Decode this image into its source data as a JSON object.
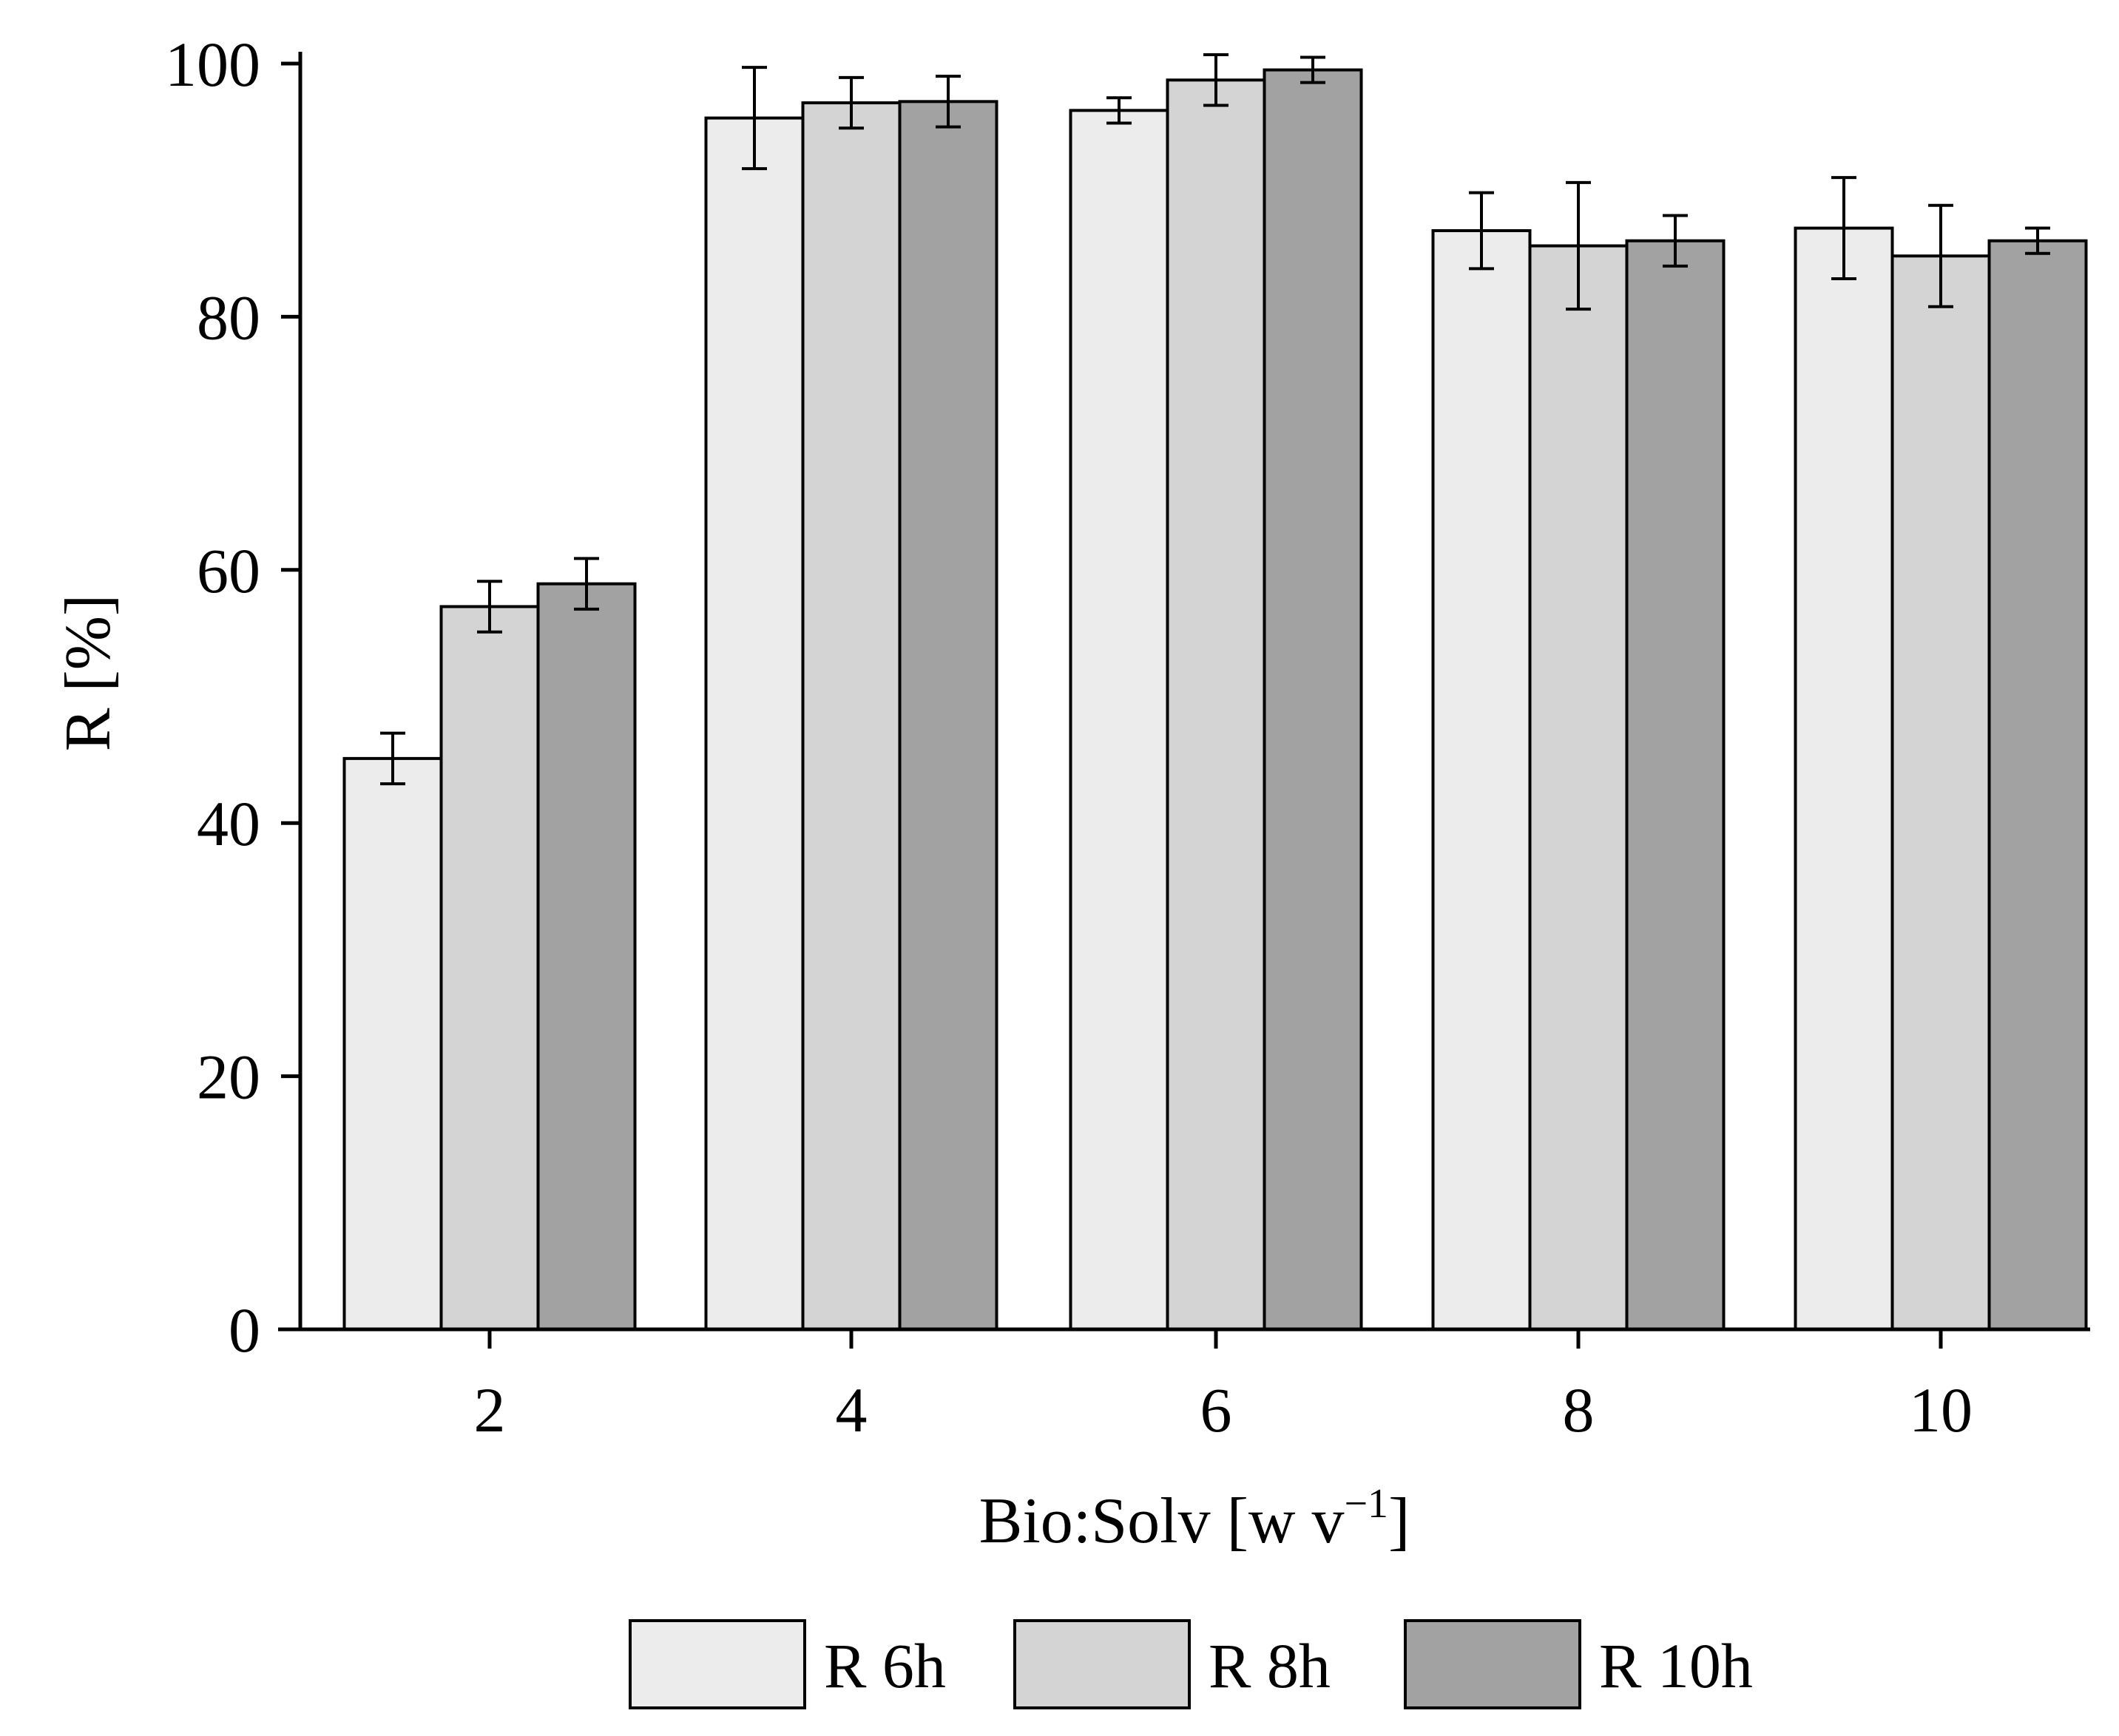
{
  "chart_data": {
    "type": "bar",
    "title": "",
    "xlabel_main": "Bio:Solv [w v",
    "xlabel_sup": "−1",
    "xlabel_close": "]",
    "ylabel": "R [%]",
    "categories": [
      "2",
      "4",
      "6",
      "8",
      "10"
    ],
    "ylim": [
      0,
      100
    ],
    "yticks": [
      0,
      20,
      40,
      60,
      80,
      100
    ],
    "ytick_labels": [
      "0",
      "20",
      "40",
      "60",
      "80",
      "100"
    ],
    "grid": false,
    "legend_position": "bottom-center",
    "series": [
      {
        "name": "R 6h",
        "color": "#ececec",
        "values": [
          45.1,
          95.7,
          96.3,
          86.8,
          87.0
        ],
        "errors": [
          2.0,
          4.0,
          1.0,
          3.0,
          4.0
        ]
      },
      {
        "name": "R 8h",
        "color": "#d4d4d4",
        "values": [
          57.1,
          96.9,
          98.7,
          85.6,
          84.8
        ],
        "errors": [
          2.0,
          2.0,
          2.0,
          5.0,
          4.0
        ]
      },
      {
        "name": "R 10h",
        "color": "#a2a2a2",
        "values": [
          58.9,
          97.0,
          99.5,
          86.0,
          86.0
        ],
        "errors": [
          2.0,
          2.0,
          1.0,
          2.0,
          1.0
        ]
      }
    ]
  }
}
